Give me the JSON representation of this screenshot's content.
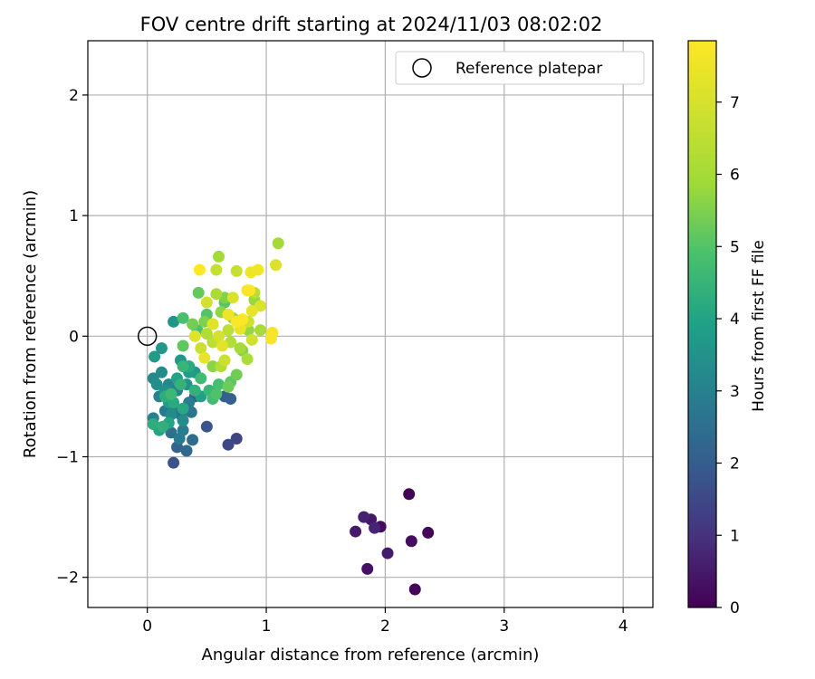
{
  "chart_data": {
    "type": "scatter",
    "title": "FOV centre drift starting at 2024/11/03 08:02:02",
    "xlabel": "Angular distance from reference (arcmin)",
    "ylabel": "Rotation from reference (arcmin)",
    "xlim": [
      -0.5,
      4.25
    ],
    "ylim": [
      -2.25,
      2.45
    ],
    "xticks": [
      0,
      1,
      2,
      3,
      4
    ],
    "yticks": [
      -2,
      -1,
      0,
      1,
      2
    ],
    "xtick_labels": [
      "0",
      "1",
      "2",
      "3",
      "4"
    ],
    "ytick_labels": [
      "−2",
      "−1",
      "0",
      "1",
      "2"
    ],
    "grid": true,
    "legend": {
      "position": "top-right",
      "entries": [
        "Reference platepar"
      ]
    },
    "colorbar": {
      "label": "Hours from first FF file",
      "colormap": "viridis",
      "range": [
        0,
        7.85
      ],
      "ticks": [
        0,
        1,
        2,
        3,
        4,
        5,
        6,
        7
      ],
      "tick_labels": [
        "0",
        "1",
        "2",
        "3",
        "4",
        "5",
        "6",
        "7"
      ]
    },
    "reference_point": {
      "name": "Reference platepar",
      "x": 0,
      "y": 0
    },
    "points": [
      [
        2.2,
        -1.31,
        0.05
      ],
      [
        2.25,
        -2.1,
        0.1
      ],
      [
        2.36,
        -1.63,
        0.15
      ],
      [
        1.96,
        -1.58,
        0.2
      ],
      [
        2.22,
        -1.7,
        0.25
      ],
      [
        1.85,
        -1.93,
        0.35
      ],
      [
        1.88,
        -1.52,
        0.45
      ],
      [
        1.75,
        -1.62,
        0.5
      ],
      [
        2.02,
        -1.8,
        0.55
      ],
      [
        1.82,
        -1.5,
        0.65
      ],
      [
        1.91,
        -1.59,
        0.75
      ],
      [
        0.75,
        -0.85,
        1.4
      ],
      [
        0.68,
        -0.9,
        1.5
      ],
      [
        0.22,
        -1.05,
        1.7
      ],
      [
        0.5,
        -0.75,
        1.8
      ],
      [
        0.65,
        -0.5,
        2.0
      ],
      [
        0.4,
        -0.5,
        2.05
      ],
      [
        0.7,
        -0.52,
        2.1
      ],
      [
        0.25,
        -0.92,
        2.2
      ],
      [
        0.33,
        -0.95,
        2.3
      ],
      [
        0.38,
        -0.86,
        2.4
      ],
      [
        0.2,
        -0.8,
        2.5
      ],
      [
        0.28,
        -0.65,
        2.6
      ],
      [
        0.37,
        -0.63,
        2.7
      ],
      [
        0.15,
        -0.62,
        2.75
      ],
      [
        0.27,
        -0.85,
        2.8
      ],
      [
        0.3,
        -0.78,
        2.85
      ],
      [
        0.35,
        -0.55,
        2.9
      ],
      [
        0.22,
        -0.58,
        2.95
      ],
      [
        0.05,
        -0.68,
        3.0
      ],
      [
        0.1,
        -0.5,
        3.05
      ],
      [
        0.25,
        -0.45,
        3.1
      ],
      [
        0.18,
        -0.4,
        3.15
      ],
      [
        0.05,
        -0.35,
        3.2
      ],
      [
        0.12,
        -0.3,
        3.25
      ],
      [
        0.2,
        -0.65,
        3.3
      ],
      [
        0.3,
        -0.7,
        3.35
      ],
      [
        0.08,
        -0.4,
        3.4
      ],
      [
        0.15,
        -0.45,
        3.45
      ],
      [
        0.33,
        -0.4,
        3.5
      ],
      [
        0.22,
        0.12,
        3.55
      ],
      [
        0.12,
        -0.1,
        3.6
      ],
      [
        0.28,
        -0.2,
        3.65
      ],
      [
        0.4,
        -0.3,
        3.7
      ],
      [
        0.06,
        -0.17,
        3.75
      ],
      [
        0.18,
        -0.55,
        3.8
      ],
      [
        0.35,
        -0.3,
        3.85
      ],
      [
        0.45,
        -0.5,
        3.9
      ],
      [
        0.25,
        -0.35,
        3.95
      ],
      [
        0.1,
        -0.78,
        4.0
      ],
      [
        0.18,
        -0.72,
        4.05
      ],
      [
        0.3,
        -0.6,
        4.1
      ],
      [
        0.35,
        -0.25,
        4.15
      ],
      [
        0.22,
        -0.55,
        4.2
      ],
      [
        0.15,
        -0.5,
        4.25
      ],
      [
        0.05,
        -0.73,
        4.3
      ],
      [
        0.13,
        -0.75,
        4.35
      ],
      [
        0.4,
        -0.45,
        4.4
      ],
      [
        0.28,
        -0.4,
        4.45
      ],
      [
        0.3,
        -0.25,
        4.5
      ],
      [
        0.52,
        -0.45,
        4.55
      ],
      [
        0.2,
        -0.48,
        4.6
      ],
      [
        0.45,
        -0.35,
        4.7
      ],
      [
        0.55,
        -0.52,
        4.75
      ],
      [
        0.6,
        -0.4,
        4.8
      ],
      [
        0.3,
        0.15,
        4.85
      ],
      [
        0.42,
        0.05,
        4.9
      ],
      [
        0.58,
        -0.48,
        4.95
      ],
      [
        0.5,
        0.18,
        5.0
      ],
      [
        0.65,
        0.28,
        5.05
      ],
      [
        0.7,
        -0.38,
        5.1
      ],
      [
        0.3,
        -0.08,
        5.15
      ],
      [
        0.43,
        0.36,
        5.2
      ],
      [
        0.55,
        0.1,
        5.25
      ],
      [
        0.68,
        -0.42,
        5.3
      ],
      [
        0.75,
        -0.32,
        5.35
      ],
      [
        0.38,
        0.1,
        5.4
      ],
      [
        0.48,
        0.12,
        5.5
      ],
      [
        0.65,
        0.32,
        5.55
      ],
      [
        0.8,
        -0.12,
        5.6
      ],
      [
        0.55,
        -0.25,
        5.65
      ],
      [
        0.62,
        0.2,
        5.7
      ],
      [
        0.85,
        0.05,
        5.75
      ],
      [
        0.9,
        0.3,
        5.8
      ],
      [
        0.72,
        0.15,
        5.85
      ],
      [
        0.6,
        0.66,
        5.9
      ],
      [
        1.1,
        0.77,
        5.95
      ],
      [
        0.78,
        -0.1,
        6.0
      ],
      [
        0.95,
        0.05,
        6.05
      ],
      [
        0.58,
        0.35,
        6.1
      ],
      [
        0.84,
        -0.19,
        6.15
      ],
      [
        0.5,
        0.02,
        6.2
      ],
      [
        0.7,
        -0.05,
        6.3
      ],
      [
        0.62,
        -0.25,
        6.35
      ],
      [
        0.9,
        0.36,
        6.4
      ],
      [
        0.55,
        -0.05,
        6.45
      ],
      [
        0.68,
        0.05,
        6.5
      ],
      [
        0.8,
        0.1,
        6.55
      ],
      [
        0.58,
        0.55,
        6.6
      ],
      [
        0.75,
        0.54,
        6.7
      ],
      [
        0.45,
        -0.1,
        6.75
      ],
      [
        0.65,
        -0.2,
        6.8
      ],
      [
        0.85,
        0.12,
        6.85
      ],
      [
        0.5,
        0.28,
        6.9
      ],
      [
        0.88,
        -0.03,
        6.95
      ],
      [
        0.6,
        0.0,
        7.0
      ],
      [
        0.72,
        0.32,
        7.05
      ],
      [
        0.95,
        0.25,
        7.1
      ],
      [
        1.08,
        0.59,
        7.15
      ],
      [
        0.4,
        0.0,
        7.2
      ],
      [
        0.55,
        0.1,
        7.25
      ],
      [
        0.63,
        -0.08,
        7.3
      ],
      [
        0.88,
        0.21,
        7.35
      ],
      [
        0.48,
        -0.18,
        7.4
      ],
      [
        0.78,
        0.06,
        7.45
      ],
      [
        0.68,
        0.18,
        7.5
      ],
      [
        0.87,
        0.53,
        7.55
      ],
      [
        0.93,
        0.55,
        7.6
      ],
      [
        0.84,
        0.38,
        7.65
      ],
      [
        1.04,
        -0.02,
        7.7
      ],
      [
        1.05,
        0.03,
        7.75
      ],
      [
        0.75,
        0.12,
        7.8
      ],
      [
        0.8,
        0.14,
        7.8
      ],
      [
        0.44,
        0.55,
        7.85
      ],
      [
        0.86,
        0.38,
        7.85
      ]
    ]
  }
}
